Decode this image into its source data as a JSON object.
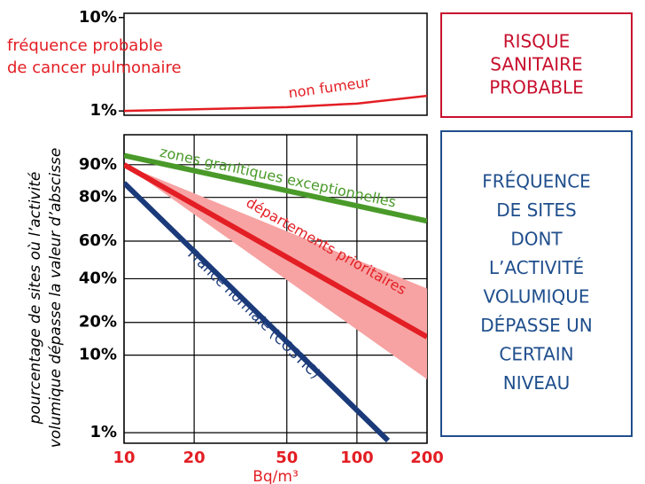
{
  "chart_data": [
    {
      "type": "line",
      "annotation": [
        "fréquence probable",
        "de cancer pulmonaire"
      ],
      "xscale": "log",
      "xlim": [
        10,
        200
      ],
      "yscale": "log",
      "ylim": [
        0.9,
        11.1
      ],
      "yticks": [
        {
          "value": 10,
          "label": "10%"
        },
        {
          "value": 1,
          "label": "1%"
        }
      ],
      "series": [
        {
          "name": "non fumeur",
          "color": "#e31e24",
          "x": [
            10,
            50,
            100,
            200
          ],
          "values": [
            1.0,
            1.1,
            1.2,
            1.45
          ]
        }
      ]
    },
    {
      "type": "line",
      "xlabel": "Bq/m³",
      "ylabel": [
        "pourcentage de sites où l’activité",
        "volumique dépasse la valeur d’abscisse"
      ],
      "xscale": "log",
      "xlim": [
        10,
        200
      ],
      "xticks": [
        10,
        20,
        50,
        100,
        200
      ],
      "yscale": "probability",
      "ylim": [
        0.68,
        95.4
      ],
      "yticks": [
        {
          "value": 90,
          "label": "90%"
        },
        {
          "value": 80,
          "label": "80%"
        },
        {
          "value": 60,
          "label": "60%"
        },
        {
          "value": 40,
          "label": "40%"
        },
        {
          "value": 20,
          "label": "20%"
        },
        {
          "value": 10,
          "label": "10%"
        },
        {
          "value": 1,
          "label": "1%"
        }
      ],
      "grid": true,
      "series": [
        {
          "name": "zones granitiques exceptionnelles",
          "color": "#4a9a2a",
          "x": [
            10,
            200
          ],
          "values": [
            92,
            70
          ]
        },
        {
          "name": "départements prioritaires",
          "color": "#e31e24",
          "x": [
            10,
            200
          ],
          "values": [
            90,
            15
          ],
          "band_color": "#f7a3a3",
          "band_upper": [
            90,
            35
          ],
          "band_lower": [
            90,
            5.4
          ]
        },
        {
          "name": "France normale (COSTIC)",
          "color": "#1b3a7a",
          "x": [
            10,
            136
          ],
          "values": [
            85,
            0.75
          ]
        }
      ]
    }
  ],
  "side_panels": [
    {
      "color": "#c8102e",
      "lines": [
        "RISQUE",
        "SANITAIRE",
        "PROBABLE"
      ]
    },
    {
      "color": "#1f4e8c",
      "lines": [
        "FRÉQUENCE",
        "DE SITES",
        "DONT",
        "L’ACTIVITÉ",
        "VOLUMIQUE",
        "DÉPASSE UN",
        "CERTAIN",
        "NIVEAU"
      ]
    }
  ]
}
